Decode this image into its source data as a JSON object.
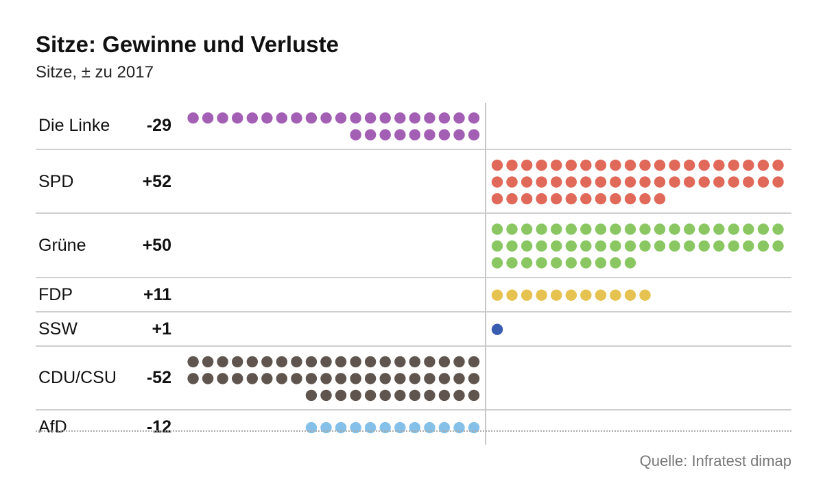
{
  "chart_data": {
    "type": "dot-unit",
    "title": "Sitze: Gewinne und Verluste",
    "subtitle": "Sitze, ± zu 2017",
    "source": "Quelle: Infratest dimap",
    "rows": [
      {
        "party": "Die Linke",
        "label": "-29",
        "value": -29,
        "color": "#a35fb4"
      },
      {
        "party": "SPD",
        "label": "+52",
        "value": 52,
        "color": "#e0695a"
      },
      {
        "party": "Grüne",
        "label": "+50",
        "value": 50,
        "color": "#8ac763"
      },
      {
        "party": "FDP",
        "label": "+11",
        "value": 11,
        "color": "#e6c250"
      },
      {
        "party": "SSW",
        "label": "+1",
        "value": 1,
        "color": "#3a5cb0"
      },
      {
        "party": "CDU/CSU",
        "label": "-52",
        "value": -52,
        "color": "#5f554e"
      },
      {
        "party": "AfD",
        "label": "-12",
        "value": -12,
        "color": "#85c0e9"
      }
    ]
  }
}
